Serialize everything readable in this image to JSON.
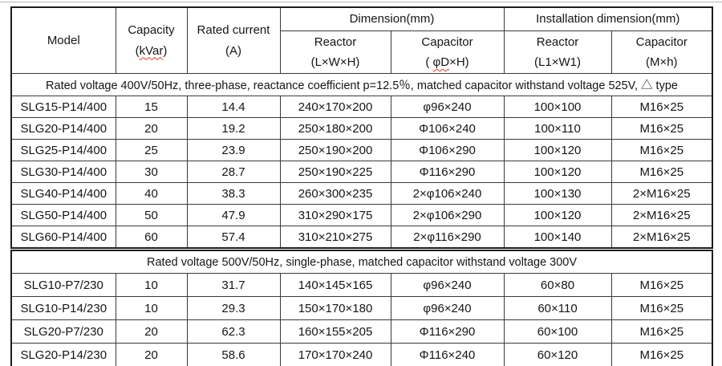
{
  "header": {
    "model": "Model",
    "capacity": [
      "Capacity",
      "(",
      "kVar",
      ")"
    ],
    "rated_current": [
      "Rated current",
      "(A)"
    ],
    "dimension_group": "Dimension(mm)",
    "installation_group": "Installation dimension(mm)",
    "dim_reactor": [
      "Reactor",
      "(L×W×H)"
    ],
    "dim_capacitor": [
      "Capacitor",
      "( ",
      "φD",
      "×H)"
    ],
    "inst_reactor": [
      "Reactor",
      "(L1×W1)"
    ],
    "inst_capacitor": [
      "Capacitor",
      "(M×h)"
    ]
  },
  "t1": {
    "note": "Rated voltage 400V/50Hz, three-phase, reactance coefficient p=12.5％, matched capacitor withstand voltage 525V,  △  type",
    "rows": [
      [
        "SLG15-P14/400",
        "15",
        "14.4",
        "240×170×200",
        "φ96×240",
        "100×100",
        "M16×25"
      ],
      [
        "SLG20-P14/400",
        "20",
        "19.2",
        "250×180×200",
        "Φ106×240",
        "100×110",
        "M16×25"
      ],
      [
        "SLG25-P14/400",
        "25",
        "23.9",
        "250×190×200",
        "Φ106×290",
        "100×120",
        "M16×25"
      ],
      [
        "SLG30-P14/400",
        "30",
        "28.7",
        "250×190×225",
        "Φ116×290",
        "100×120",
        "M16×25"
      ],
      [
        "SLG40-P14/400",
        "40",
        "38.3",
        "260×300×235",
        "2×φ106×240",
        "100×130",
        "2×M16×25"
      ],
      [
        "SLG50-P14/400",
        "50",
        "47.9",
        "310×290×175",
        "2×φ106×290",
        "100×120",
        "2×M16×25"
      ],
      [
        "SLG60-P14/400",
        "60",
        "57.4",
        "310×210×275",
        "2×φ116×290",
        "100×140",
        "2×M16×25"
      ]
    ]
  },
  "t2": {
    "note": "Rated voltage 500V/50Hz, single-phase, matched capacitor withstand voltage 300V",
    "rows": [
      [
        "SLG10-P7/230",
        "10",
        "31.7",
        "140×145×165",
        "φ96×240",
        "60×80",
        "M16×25"
      ],
      [
        "SLG10-P14/230",
        "10",
        "29.3",
        "150×170×180",
        "φ96×240",
        "60×110",
        "M16×25"
      ],
      [
        "SLG20-P7/230",
        "20",
        "62.3",
        "160×155×205",
        "Φ116×290",
        "60×100",
        "M16×25"
      ],
      [
        "SLG20-P14/230",
        "20",
        "58.6",
        "170×170×240",
        "Φ116×240",
        "60×120",
        "M16×25"
      ]
    ]
  }
}
